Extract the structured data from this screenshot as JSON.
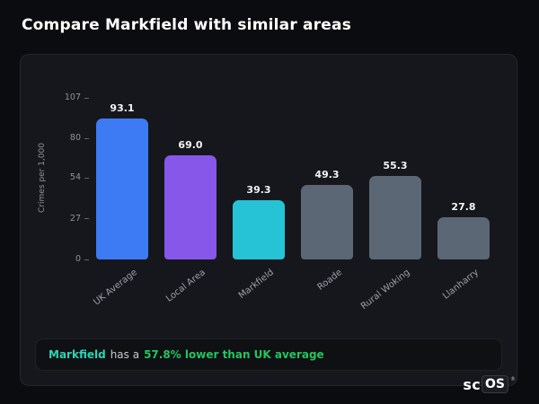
{
  "header": {
    "title": "Compare Markfield with similar areas"
  },
  "chart_data": {
    "type": "bar",
    "title": "Compare Markfield with similar areas",
    "xlabel": "",
    "ylabel": "Crimes per 1,000",
    "categories": [
      "UK Average",
      "Local Area",
      "Markfield",
      "Roade",
      "Rural Woking",
      "Llanharry"
    ],
    "values": [
      93.1,
      69.0,
      39.3,
      49.3,
      55.3,
      27.8
    ],
    "value_labels": [
      "93.1",
      "69.0",
      "39.3",
      "49.3",
      "55.3",
      "27.8"
    ],
    "colors": [
      "#3d7bf5",
      "#8657e8",
      "#26c3d6",
      "#5c6775",
      "#5c6775",
      "#5c6775"
    ],
    "yticks": [
      107,
      80,
      54,
      27,
      0
    ],
    "ylim": [
      0,
      107
    ],
    "grid": false,
    "legend": false
  },
  "note": {
    "area": "Markfield",
    "middle": "has a",
    "highlight": "57.8% lower than UK average"
  },
  "logo": {
    "prefix": "sc",
    "suffix": "OS",
    "reg": "®"
  }
}
